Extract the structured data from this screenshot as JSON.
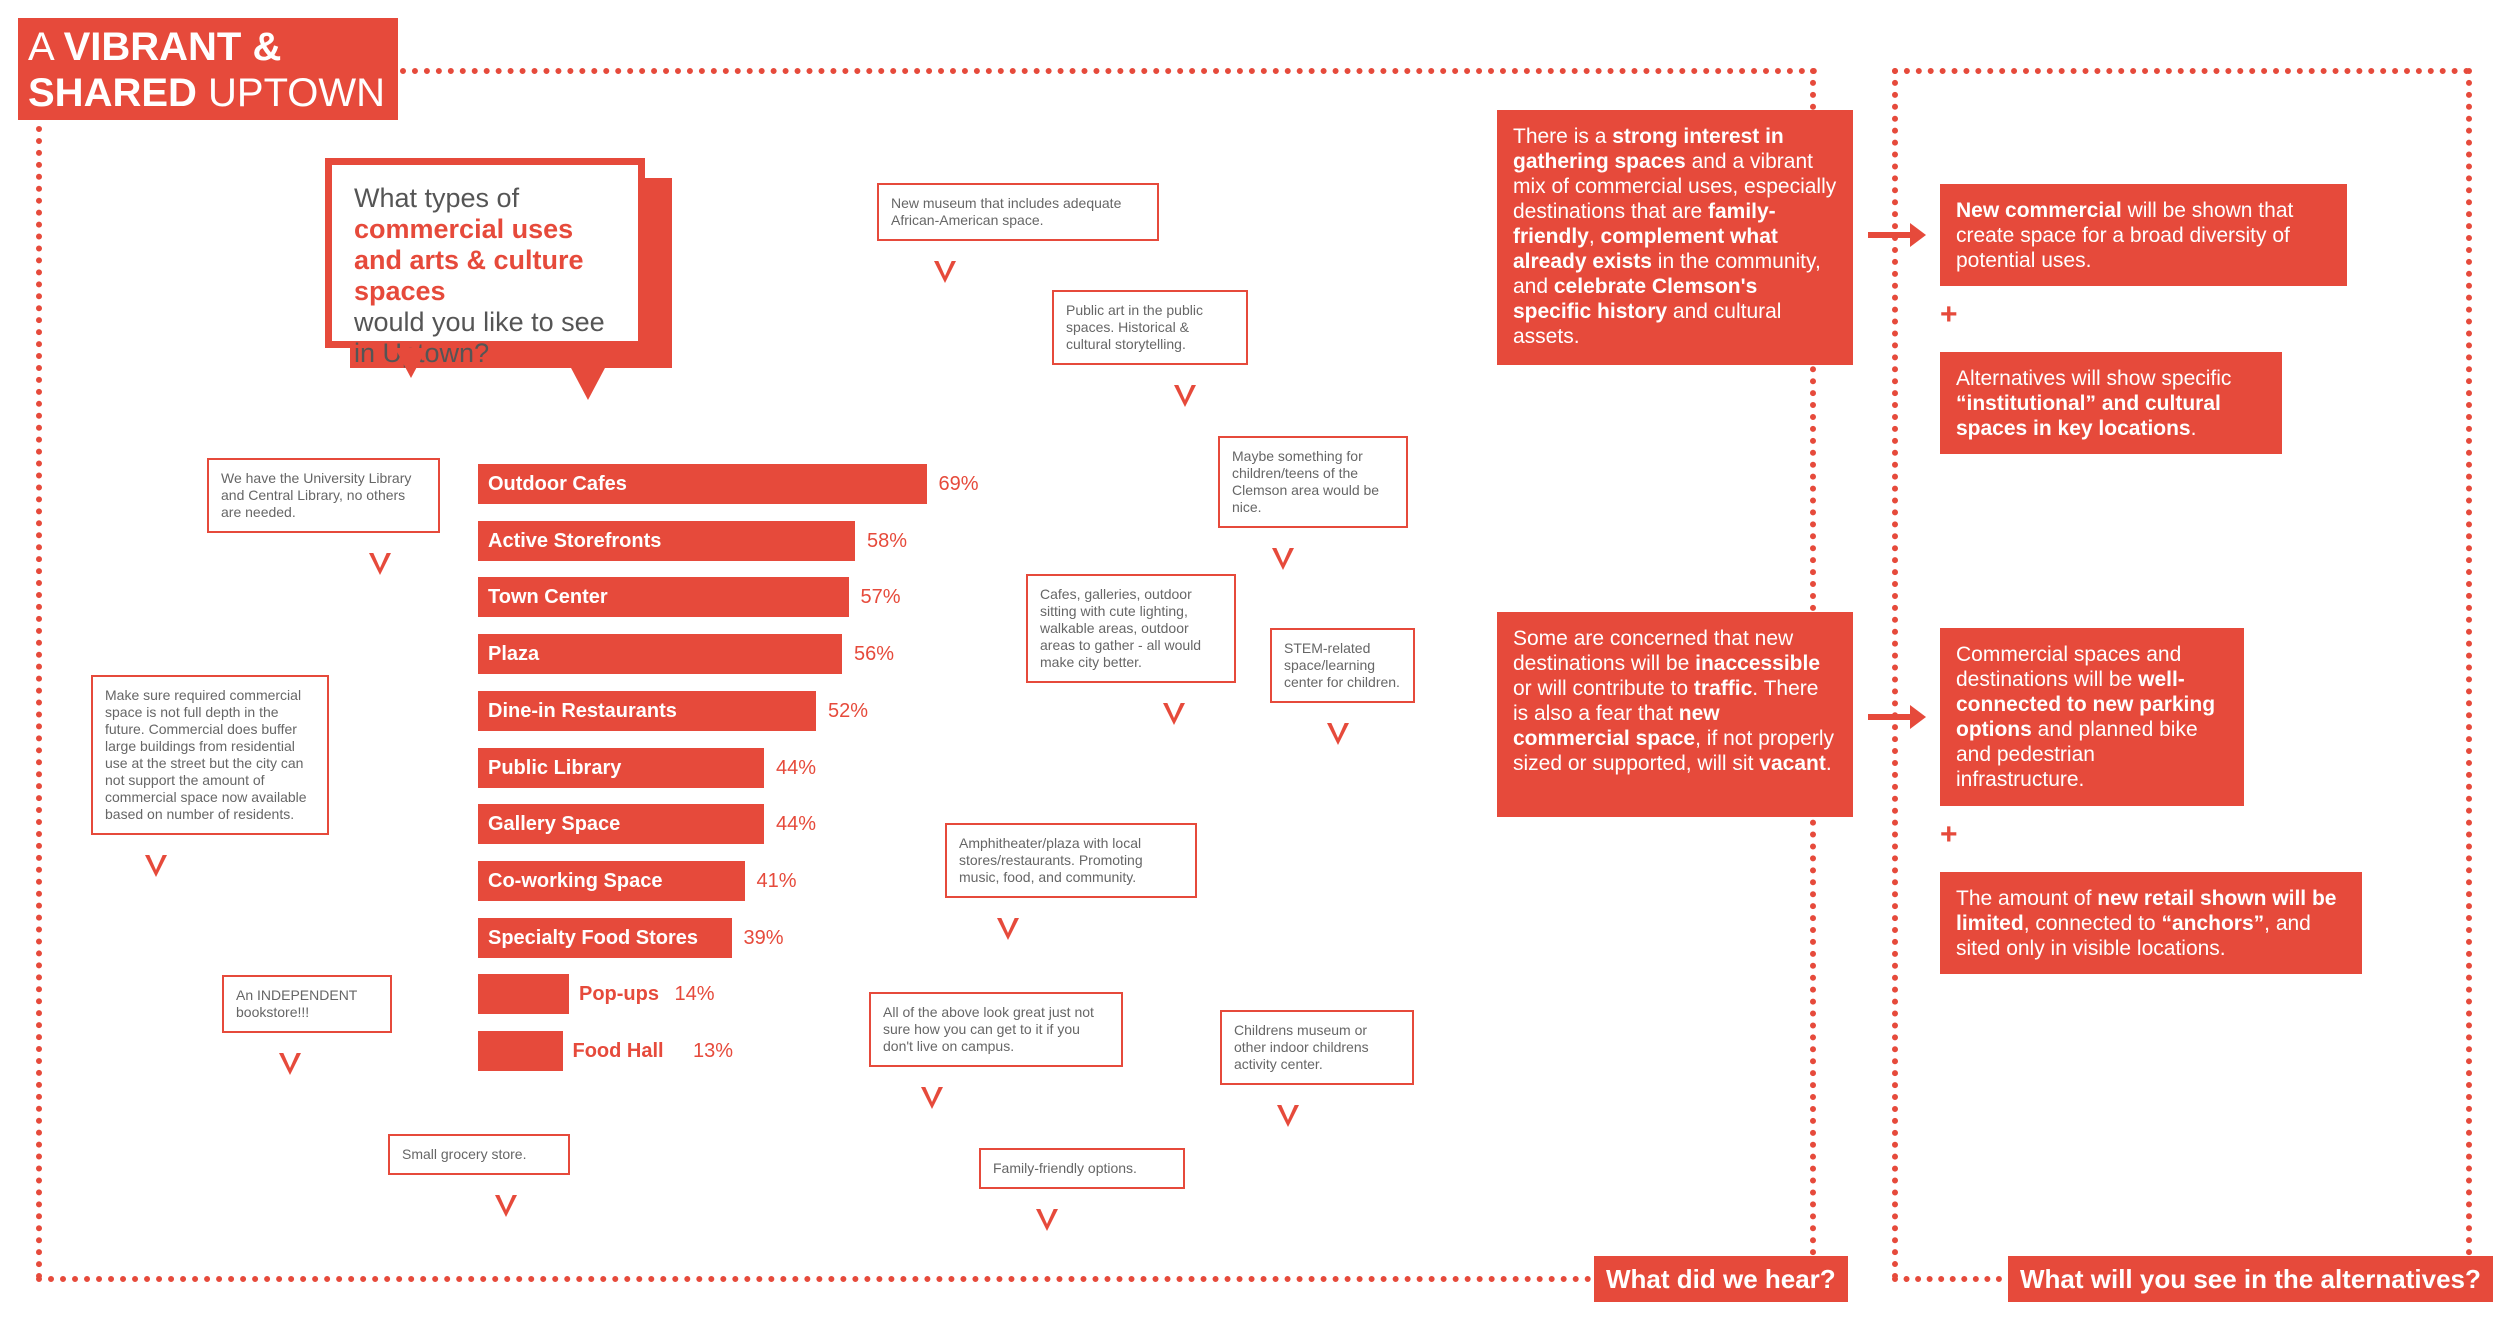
{
  "header": {
    "title_line1_light": "A ",
    "title_line1_bold": "VIBRANT &",
    "title_line2_bold": "SHARED",
    "title_line2_light": " UPTOWN"
  },
  "question": {
    "line1": "What types of",
    "bold": "commercial uses and arts & culture spaces",
    "line3": "would you like to see in Uptown?"
  },
  "chart_data": {
    "type": "bar",
    "orientation": "horizontal",
    "categories": [
      "Outdoor Cafes",
      "Active Storefronts",
      "Town Center",
      "Plaza",
      "Dine-in Restaurants",
      "Public Library",
      "Gallery Space",
      "Co-working Space",
      "Specialty Food Stores",
      "Pop-ups",
      "Food Hall"
    ],
    "values": [
      69,
      58,
      57,
      56,
      52,
      44,
      44,
      41,
      39,
      14,
      13
    ],
    "value_labels": [
      "69%",
      "58%",
      "57%",
      "56%",
      "52%",
      "44%",
      "44%",
      "41%",
      "39%",
      "14%",
      "13%"
    ]
  },
  "comments": [
    "New museum that includes adequate African-American space.",
    "Public art in the public spaces. Historical & cultural storytelling.",
    "Maybe something for children/teens of the Clemson area would be nice.",
    "We have the University Library and Central Library, no others are needed.",
    "Cafes, galleries, outdoor sitting with cute lighting, walkable areas, outdoor areas to gather - all would make city better.",
    "STEM-related space/learning center for children.",
    "Make sure required commercial space is not full depth in the future. Commercial does buffer large buildings from residential use at the street but the city can not support the amount of commercial space now available based on number of residents.",
    "Amphitheater/plaza with local stores/restaurants. Promoting music, food, and community.",
    "An INDEPENDENT bookstore!!!",
    "All of the above look great just not sure how you can get to it if you don't live on campus.",
    "Childrens museum or other indoor childrens activity center.",
    "Small grocery store.",
    "Family-friendly options."
  ],
  "heard": {
    "box1": {
      "t1": "There is a ",
      "b1": "strong interest in gathering spaces",
      "t2": " and a vibrant mix of commercial uses, especially destinations that are ",
      "b2": "family-friendly",
      "t3": ", ",
      "b3": "complement what already exists",
      "t4": " in the community, and ",
      "b4": "celebrate Clemson's specific history",
      "t5": " and cultural assets."
    },
    "box2": {
      "t1": "Some are concerned that new destinations will be ",
      "b1": "inaccessible",
      "t2": " or will contribute to ",
      "b2": "traffic",
      "t3": ". There is also a fear that ",
      "b3": "new commercial space",
      "t4": ", if not properly sized or supported, will sit ",
      "b4": "vacant",
      "t5": "."
    },
    "tab": "What did we hear?"
  },
  "alternatives": {
    "box1": {
      "b1": "New commercial",
      "t1": " will be shown that create space for a broad diversity of potential uses."
    },
    "box2": {
      "t1": "Alternatives will show specific ",
      "b1": "“institutional” and cultural spaces in key locations",
      "t2": "."
    },
    "box3": {
      "t1": "Commercial spaces and destinations will be ",
      "b1": "well-connected to new parking options",
      "t2": " and planned bike and pedestrian infrastructure."
    },
    "box4": {
      "t1": "The amount of ",
      "b1": "new retail shown will be limited",
      "t2": ", connected to ",
      "b2": "“anchors”",
      "t3": ", and sited only in visible locations."
    },
    "plus": "+",
    "tab": "What will you see in the alternatives?"
  },
  "colors": {
    "accent": "#e64a3b"
  }
}
